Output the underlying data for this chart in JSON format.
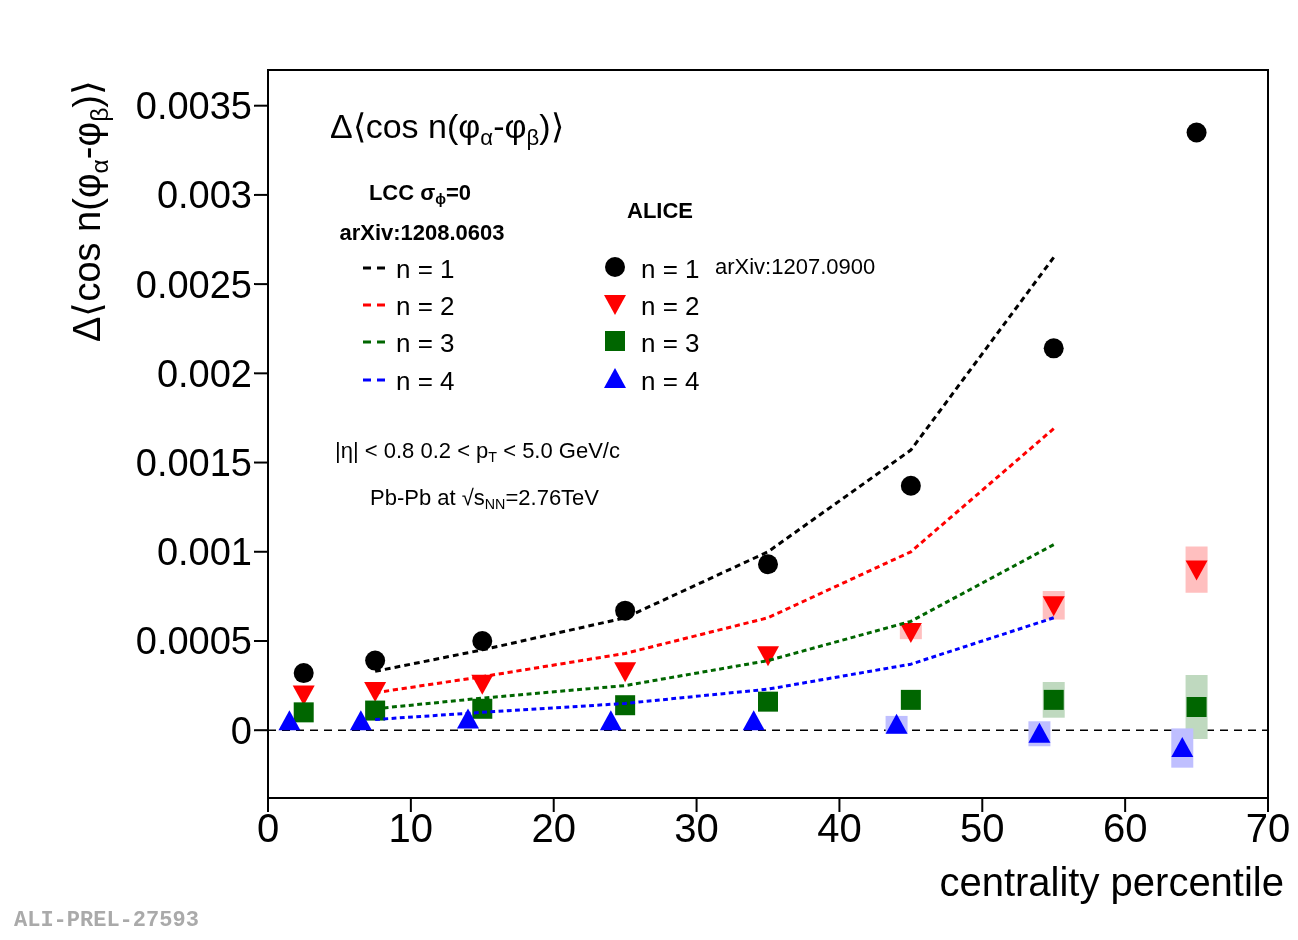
{
  "chart_data": {
    "type": "scatter",
    "title": "Δ⟨cos n(φ$_{α}$-φ$_{β}$)⟩",
    "xlabel": "centrality percentile",
    "ylabel": "Δ⟨cos n(φ$_{α}$-φ$_{β}$)⟩",
    "xlim": [
      0,
      70
    ],
    "xticks": [
      0,
      10,
      20,
      30,
      40,
      50,
      60,
      70
    ],
    "ylim": [
      -0.00038,
      0.0037
    ],
    "yticks": [
      0,
      0.0005,
      0.001,
      0.0015,
      0.002,
      0.0025,
      0.003,
      0.0035
    ],
    "grid": false,
    "legend": "top left",
    "ref_lines": [
      {
        "axis": "y",
        "value": 0,
        "color": "#000000",
        "line_style": "dashed"
      }
    ],
    "annotations": [
      "LCC σ$_{ϕ}$=0",
      "arXiv:1208.0603",
      "ALICE",
      "arXiv:1207.0900",
      "|η| < 0.8   0.2 < p$_{T}$ < 5.0 GeV/c",
      "Pb-Pb at √s$_{NN}$=2.76TeV",
      "ALI-PREL-27593"
    ],
    "series": [
      {
        "name": "n = 1",
        "type": "line",
        "color": "#000000",
        "line_style": "dashed",
        "marker": "none",
        "x": [
          7.5,
          15,
          25,
          35,
          45,
          55
        ],
        "values": [
          0.00033,
          0.00045,
          0.00063,
          0.001,
          0.00157,
          0.00265
        ]
      },
      {
        "name": "n = 2",
        "type": "line",
        "color": "#ff0000",
        "line_style": "dashed",
        "marker": "none",
        "x": [
          7.5,
          15,
          25,
          35,
          45,
          55
        ],
        "values": [
          0.00021,
          0.0003,
          0.00043,
          0.00063,
          0.001,
          0.00169
        ]
      },
      {
        "name": "n = 3",
        "type": "line",
        "color": "#006600",
        "line_style": "dashed",
        "marker": "none",
        "x": [
          7.5,
          15,
          25,
          35,
          45,
          55
        ],
        "values": [
          0.00012,
          0.00018,
          0.00025,
          0.00039,
          0.00061,
          0.00104
        ]
      },
      {
        "name": "n = 4",
        "type": "line",
        "color": "#0000ff",
        "line_style": "dashed",
        "marker": "none",
        "x": [
          7.5,
          15,
          25,
          35,
          45,
          55
        ],
        "values": [
          6e-05,
          0.0001,
          0.00015,
          0.00023,
          0.00037,
          0.00063
        ]
      },
      {
        "name": "n = 1",
        "type": "scatter",
        "color": "#000000",
        "marker": "circle",
        "x": [
          2.5,
          7.5,
          15,
          25,
          35,
          45,
          55,
          65
        ],
        "values": [
          0.00032,
          0.00039,
          0.0005,
          0.00067,
          0.00093,
          0.00137,
          0.00214,
          0.00335
        ]
      },
      {
        "name": "n = 2",
        "type": "scatter",
        "color": "#ff0000",
        "marker": "triangle-down",
        "x": [
          2.5,
          7.5,
          15,
          25,
          35,
          45,
          55,
          65
        ],
        "values": [
          0.0002,
          0.00022,
          0.00026,
          0.00033,
          0.00042,
          0.00055,
          0.0007,
          0.0009
        ],
        "errors": [
          null,
          null,
          null,
          null,
          null,
          4e-05,
          8e-05,
          0.00013
        ]
      },
      {
        "name": "n = 3",
        "type": "scatter",
        "color": "#006600",
        "marker": "square",
        "x": [
          2.5,
          7.5,
          15,
          25,
          35,
          45,
          55,
          65
        ],
        "values": [
          0.0001,
          0.00011,
          0.00012,
          0.00014,
          0.00016,
          0.00017,
          0.00017,
          0.00013
        ],
        "errors": [
          null,
          null,
          null,
          null,
          null,
          null,
          0.0001,
          0.00018
        ]
      },
      {
        "name": "n = 4",
        "type": "scatter",
        "color": "#0000ff",
        "marker": "triangle",
        "x": [
          1.5,
          6.5,
          14,
          24,
          34,
          44,
          54,
          64
        ],
        "values": [
          5e-05,
          5e-05,
          6e-05,
          5e-05,
          5e-05,
          3e-05,
          -2e-05,
          -0.0001
        ],
        "errors": [
          null,
          null,
          null,
          null,
          null,
          5e-05,
          7e-05,
          0.00011
        ]
      }
    ]
  }
}
